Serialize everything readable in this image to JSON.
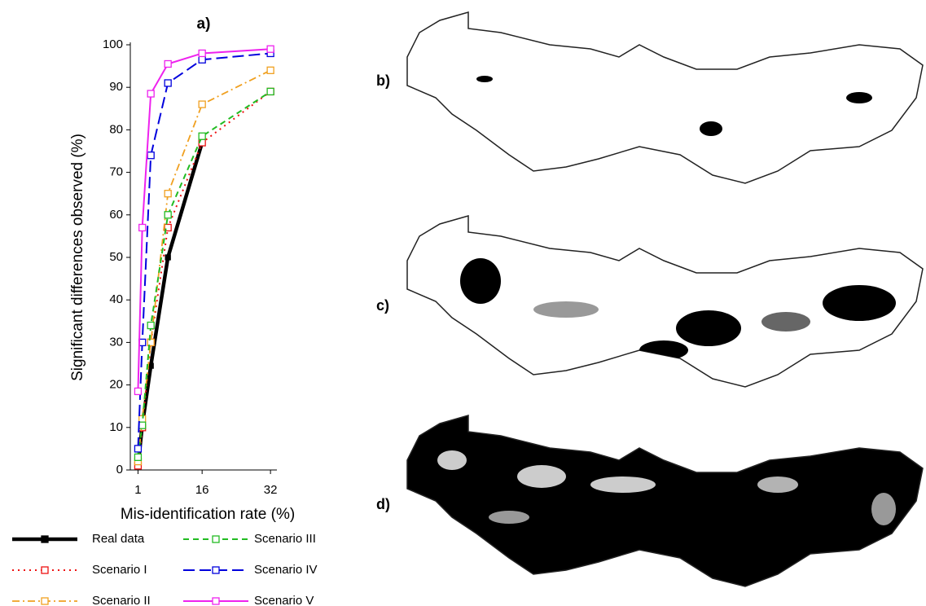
{
  "chart_data": {
    "type": "line",
    "title": "a)",
    "x_label": "Mis-identification rate (%)",
    "y_label": "Significant differences observed (%)",
    "x": [
      1,
      2,
      4,
      8,
      16,
      32
    ],
    "xlim": [
      -0.8,
      33.5
    ],
    "xticks": [
      1,
      16,
      32
    ],
    "ylim": [
      0,
      100
    ],
    "yticks": [
      0,
      10,
      20,
      30,
      40,
      50,
      60,
      70,
      80,
      90,
      100
    ],
    "legend": "bottom-left",
    "series": [
      {
        "name": "Real data",
        "color": "#000000",
        "line_style": "thick",
        "values": [
          1,
          10.5,
          24.5,
          50,
          77,
          null
        ]
      },
      {
        "name": "Scenario I",
        "color": "#ee1111",
        "line_style": "dotted",
        "values": [
          1,
          10,
          30,
          57,
          77,
          89
        ]
      },
      {
        "name": "Scenario II",
        "color": "#f0a020",
        "line_style": "dashdot",
        "values": [
          2,
          12,
          30,
          65,
          86,
          94
        ]
      },
      {
        "name": "Scenario III",
        "color": "#22bb22",
        "line_style": "dashed",
        "values": [
          3,
          10.5,
          34,
          60,
          78.5,
          89
        ]
      },
      {
        "name": "Scenario IV",
        "color": "#0000dd",
        "line_style": "longdash",
        "values": [
          5,
          30,
          74,
          91,
          96.5,
          98
        ]
      },
      {
        "name": "Scenario V",
        "color": "#ee22ee",
        "line_style": "solid",
        "values": [
          18.5,
          57,
          88.5,
          95.5,
          98,
          99
        ]
      }
    ]
  },
  "panels": [
    "b)",
    "c)",
    "d)"
  ]
}
